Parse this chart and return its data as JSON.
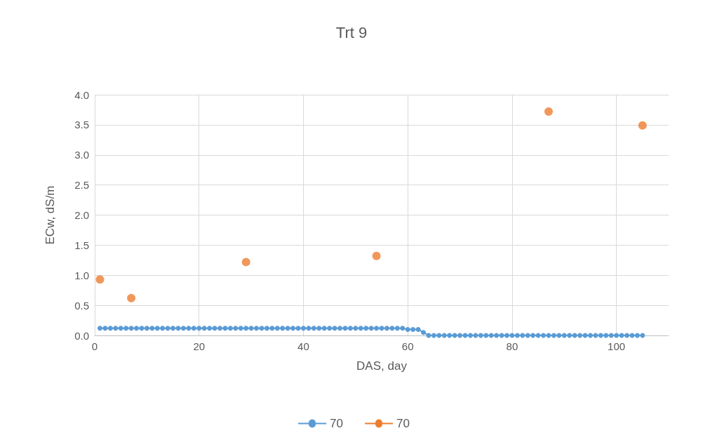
{
  "chart_data": {
    "type": "line",
    "title": "Trt 9",
    "xlabel": "DAS, day",
    "ylabel": "ECw, dS/m",
    "xlim": [
      0,
      110
    ],
    "xticks": [
      0,
      20,
      40,
      60,
      80,
      100
    ],
    "ylim": [
      0,
      4
    ],
    "yticks": [
      {
        "value": 0,
        "label": "0.0"
      },
      {
        "value": 0.5,
        "label": "0.5"
      },
      {
        "value": 1,
        "label": "1.0"
      },
      {
        "value": 1.5,
        "label": "1.5"
      },
      {
        "value": 2,
        "label": "2.0"
      },
      {
        "value": 2.5,
        "label": "2.5"
      },
      {
        "value": 3,
        "label": "3.0"
      },
      {
        "value": 3.5,
        "label": "3.5"
      },
      {
        "value": 4,
        "label": "4.0"
      }
    ],
    "grid": true,
    "legend": "bottom",
    "marker": "circle",
    "series": [
      {
        "name": "70",
        "color": "#5b9bd5",
        "x": [
          1,
          2,
          3,
          4,
          5,
          6,
          7,
          8,
          9,
          10,
          11,
          12,
          13,
          14,
          15,
          16,
          17,
          18,
          19,
          20,
          21,
          22,
          23,
          24,
          25,
          26,
          27,
          28,
          29,
          30,
          31,
          32,
          33,
          34,
          35,
          36,
          37,
          38,
          39,
          40,
          41,
          42,
          43,
          44,
          45,
          46,
          47,
          48,
          49,
          50,
          51,
          52,
          53,
          54,
          55,
          56,
          57,
          58,
          59,
          60,
          61,
          62,
          63,
          64,
          65,
          66,
          67,
          68,
          69,
          70,
          71,
          72,
          73,
          74,
          75,
          76,
          77,
          78,
          79,
          80,
          81,
          82,
          83,
          84,
          85,
          86,
          87,
          88,
          89,
          90,
          91,
          92,
          93,
          94,
          95,
          96,
          97,
          98,
          99,
          100,
          101,
          102,
          103,
          104,
          105
        ],
        "values": [
          0.12,
          0.12,
          0.12,
          0.12,
          0.12,
          0.12,
          0.12,
          0.12,
          0.12,
          0.12,
          0.12,
          0.12,
          0.12,
          0.12,
          0.12,
          0.12,
          0.12,
          0.12,
          0.12,
          0.12,
          0.12,
          0.12,
          0.12,
          0.12,
          0.12,
          0.12,
          0.12,
          0.12,
          0.12,
          0.12,
          0.12,
          0.12,
          0.12,
          0.12,
          0.12,
          0.12,
          0.12,
          0.12,
          0.12,
          0.12,
          0.12,
          0.12,
          0.12,
          0.12,
          0.12,
          0.12,
          0.12,
          0.12,
          0.12,
          0.12,
          0.12,
          0.12,
          0.12,
          0.12,
          0.12,
          0.12,
          0.12,
          0.12,
          0.12,
          0.1,
          0.1,
          0.1,
          0.05,
          0,
          0,
          0,
          0,
          0,
          0,
          0,
          0,
          0,
          0,
          0,
          0,
          0,
          0,
          0,
          0,
          0,
          0,
          0,
          0,
          0,
          0,
          0,
          0,
          0,
          0,
          0,
          0,
          0,
          0,
          0,
          0,
          0,
          0,
          0,
          0,
          0,
          0,
          0,
          0,
          0,
          0
        ]
      },
      {
        "name": "70",
        "type": "scatter",
        "color": "#ed7d31",
        "x": [
          1,
          7,
          29,
          54,
          87,
          105
        ],
        "values": [
          0.93,
          0.62,
          1.22,
          1.32,
          3.72,
          3.49
        ]
      }
    ]
  }
}
